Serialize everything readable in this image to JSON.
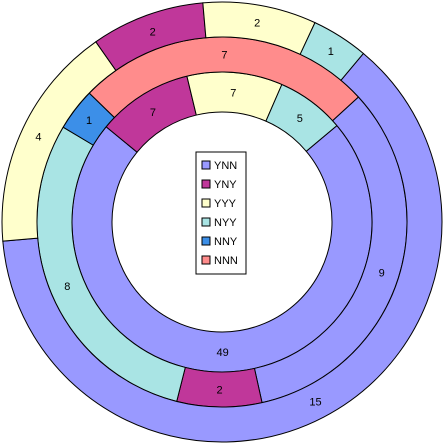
{
  "chart_data": {
    "type": "doughnut",
    "categories": [
      "YNN",
      "YNY",
      "YYY",
      "NYY",
      "NNY",
      "NNN"
    ],
    "colors": {
      "YNN": "#9999FF",
      "YNY": "#C0379A",
      "YYY": "#FFFFCC",
      "NYY": "#A9E4E4",
      "NNY": "#3C8FE8",
      "NNN": "#FF8C8C"
    },
    "legend": {
      "placement": "center",
      "entries": [
        "YNN",
        "YNY",
        "YYY",
        "NYY",
        "NNY",
        "NNN"
      ]
    },
    "rings": [
      {
        "position": "inner",
        "segments": [
          {
            "category": "YNN",
            "value": 49
          },
          {
            "category": "YNY",
            "value": 7
          },
          {
            "category": "YYY",
            "value": 7
          },
          {
            "category": "NYY",
            "value": 5
          }
        ]
      },
      {
        "position": "middle",
        "segments": [
          {
            "category": "YNN",
            "value": 9
          },
          {
            "category": "YNY",
            "value": 2
          },
          {
            "category": "NYY",
            "value": 8
          },
          {
            "category": "NNY",
            "value": 1
          },
          {
            "category": "NNN",
            "value": 7
          }
        ]
      },
      {
        "position": "outer",
        "segments": [
          {
            "category": "YNN",
            "value": 15
          },
          {
            "category": "YYY",
            "value": 4
          },
          {
            "category": "YNY",
            "value": 2
          },
          {
            "category": "YYY",
            "value": 2
          },
          {
            "category": "NYY",
            "value": 1
          }
        ]
      }
    ]
  }
}
